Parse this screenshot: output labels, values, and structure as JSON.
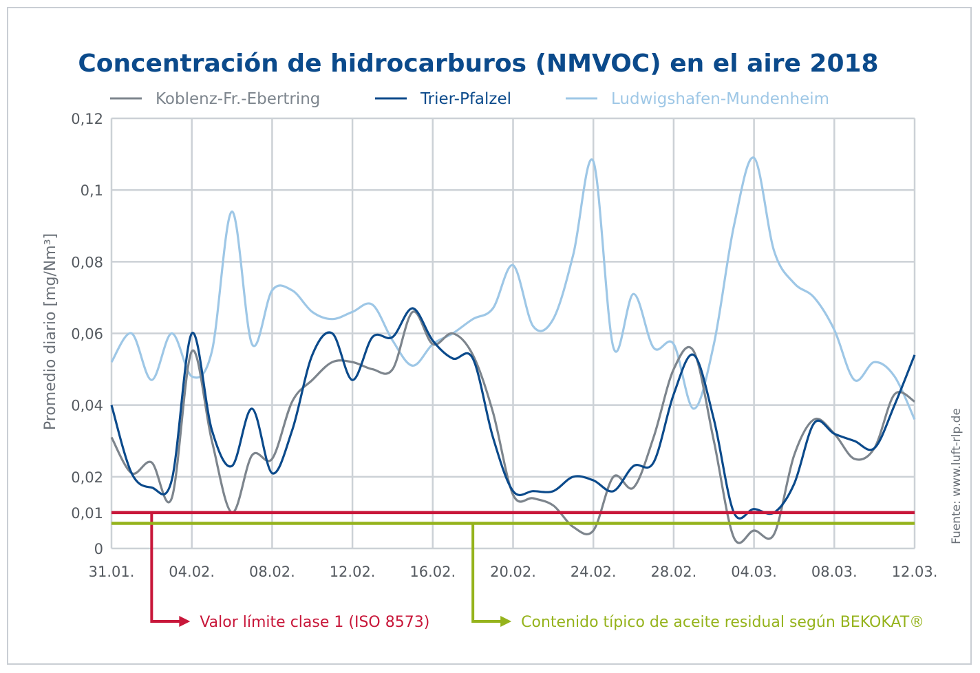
{
  "chart_data": {
    "type": "line",
    "title": "Concentración de hidrocarburos (NMVOC) en el aire 2018",
    "ylabel": "Promedio diario [mg/Nm³]",
    "xlabel": "",
    "x_tick_labels": [
      "31.01.",
      "04.02.",
      "08.02.",
      "12.02.",
      "16.02.",
      "20.02.",
      "24.02.",
      "28.02.",
      "04.03.",
      "08.03.",
      "12.03."
    ],
    "y_tick_labels": [
      "0",
      "0,01",
      "0,02",
      "0,04",
      "0,06",
      "0,08",
      "0,1",
      "0,12"
    ],
    "y_tick_values": [
      0,
      0.01,
      0.02,
      0.04,
      0.06,
      0.08,
      0.1,
      0.12
    ],
    "ylim": [
      0,
      0.12
    ],
    "xlim": [
      0,
      40
    ],
    "x_unit": "days since 31.01.2018",
    "grid": true,
    "legend_position": "top",
    "series": [
      {
        "name": "Koblenz-Fr.-Ebertring",
        "color": "#7d858d",
        "points": [
          [
            0,
            0.031
          ],
          [
            1,
            0.021
          ],
          [
            2,
            0.024
          ],
          [
            3,
            0.014
          ],
          [
            4,
            0.055
          ],
          [
            5,
            0.03
          ],
          [
            6,
            0.01
          ],
          [
            7,
            0.026
          ],
          [
            8,
            0.025
          ],
          [
            9,
            0.041
          ],
          [
            10,
            0.047
          ],
          [
            11,
            0.052
          ],
          [
            12,
            0.052
          ],
          [
            13,
            0.05
          ],
          [
            14,
            0.05
          ],
          [
            15,
            0.066
          ],
          [
            16,
            0.057
          ],
          [
            17,
            0.06
          ],
          [
            18,
            0.054
          ],
          [
            19,
            0.038
          ],
          [
            20,
            0.015
          ],
          [
            21,
            0.014
          ],
          [
            22,
            0.012
          ],
          [
            23,
            0.006
          ],
          [
            24,
            0.005
          ],
          [
            25,
            0.02
          ],
          [
            26,
            0.017
          ],
          [
            27,
            0.031
          ],
          [
            28,
            0.05
          ],
          [
            29,
            0.055
          ],
          [
            30,
            0.03
          ],
          [
            31,
            0.003
          ],
          [
            32,
            0.005
          ],
          [
            33,
            0.004
          ],
          [
            34,
            0.026
          ],
          [
            35,
            0.036
          ],
          [
            36,
            0.032
          ],
          [
            37,
            0.025
          ],
          [
            38,
            0.028
          ],
          [
            39,
            0.043
          ],
          [
            40,
            0.041
          ]
        ]
      },
      {
        "name": "Trier-Pfalzel",
        "color": "#0b4a8b",
        "points": [
          [
            0,
            0.04
          ],
          [
            1,
            0.021
          ],
          [
            2,
            0.017
          ],
          [
            3,
            0.019
          ],
          [
            4,
            0.06
          ],
          [
            5,
            0.033
          ],
          [
            6,
            0.023
          ],
          [
            7,
            0.039
          ],
          [
            8,
            0.021
          ],
          [
            9,
            0.033
          ],
          [
            10,
            0.054
          ],
          [
            11,
            0.06
          ],
          [
            12,
            0.047
          ],
          [
            13,
            0.059
          ],
          [
            14,
            0.059
          ],
          [
            15,
            0.067
          ],
          [
            16,
            0.058
          ],
          [
            17,
            0.053
          ],
          [
            18,
            0.053
          ],
          [
            19,
            0.031
          ],
          [
            20,
            0.016
          ],
          [
            21,
            0.016
          ],
          [
            22,
            0.016
          ],
          [
            23,
            0.02
          ],
          [
            24,
            0.019
          ],
          [
            25,
            0.016
          ],
          [
            26,
            0.023
          ],
          [
            27,
            0.024
          ],
          [
            28,
            0.043
          ],
          [
            29,
            0.054
          ],
          [
            30,
            0.036
          ],
          [
            31,
            0.01
          ],
          [
            32,
            0.011
          ],
          [
            33,
            0.01
          ],
          [
            34,
            0.018
          ],
          [
            35,
            0.035
          ],
          [
            36,
            0.032
          ],
          [
            37,
            0.03
          ],
          [
            38,
            0.028
          ],
          [
            39,
            0.04
          ],
          [
            40,
            0.054
          ]
        ]
      },
      {
        "name": "Ludwigshafen-Mundenheim",
        "color": "#9ec7e6",
        "points": [
          [
            0,
            0.052
          ],
          [
            1,
            0.06
          ],
          [
            2,
            0.047
          ],
          [
            3,
            0.06
          ],
          [
            4,
            0.048
          ],
          [
            5,
            0.055
          ],
          [
            6,
            0.094
          ],
          [
            7,
            0.057
          ],
          [
            8,
            0.072
          ],
          [
            9,
            0.072
          ],
          [
            10,
            0.066
          ],
          [
            11,
            0.064
          ],
          [
            12,
            0.066
          ],
          [
            13,
            0.068
          ],
          [
            14,
            0.058
          ],
          [
            15,
            0.051
          ],
          [
            16,
            0.057
          ],
          [
            17,
            0.06
          ],
          [
            18,
            0.064
          ],
          [
            19,
            0.067
          ],
          [
            20,
            0.079
          ],
          [
            21,
            0.062
          ],
          [
            22,
            0.064
          ],
          [
            23,
            0.082
          ],
          [
            24,
            0.108
          ],
          [
            25,
            0.056
          ],
          [
            26,
            0.071
          ],
          [
            27,
            0.056
          ],
          [
            28,
            0.057
          ],
          [
            29,
            0.039
          ],
          [
            30,
            0.057
          ],
          [
            31,
            0.09
          ],
          [
            32,
            0.109
          ],
          [
            33,
            0.083
          ],
          [
            34,
            0.074
          ],
          [
            35,
            0.07
          ],
          [
            36,
            0.061
          ],
          [
            37,
            0.047
          ],
          [
            38,
            0.052
          ],
          [
            39,
            0.048
          ],
          [
            40,
            0.036
          ]
        ]
      }
    ],
    "reference_lines": [
      {
        "label": "Valor límite clase 1 (ISO 8573)",
        "value": 0.01,
        "color": "#c8173a",
        "anchor_x": 2
      },
      {
        "label": "Contenido típico de aceite residual según BEKOKAT®",
        "value": 0.007,
        "color": "#95b31c",
        "anchor_x": 18
      }
    ],
    "source": "Fuente: www.luft-rlp.de"
  }
}
